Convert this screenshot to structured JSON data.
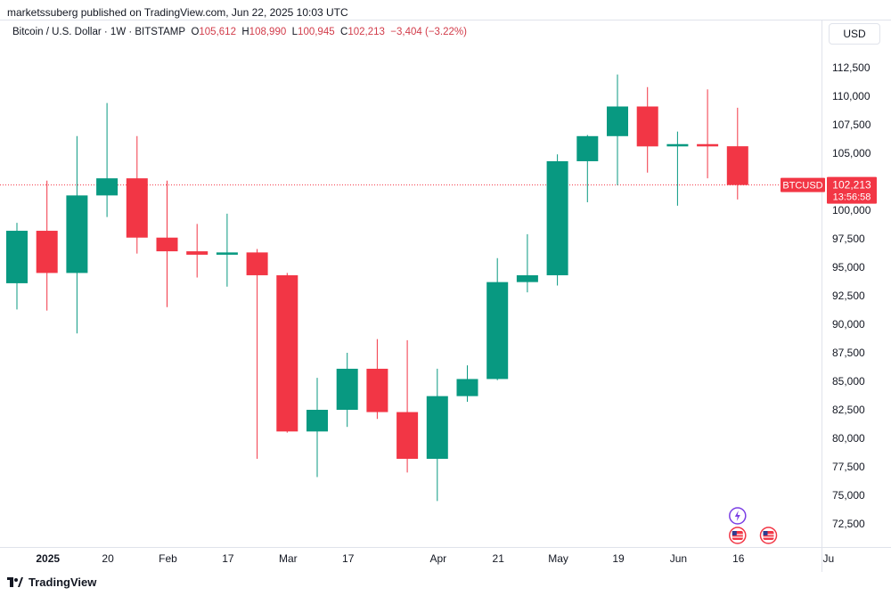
{
  "header": {
    "published": "marketssuberg published on TradingView.com, Jun 22, 2025 10:03 UTC",
    "symbol": "Bitcoin / U.S. Dollar · 1W · BITSTAMP",
    "o_label": "O",
    "o_value": "105,612",
    "h_label": "H",
    "h_value": "108,990",
    "l_label": "L",
    "l_value": "100,945",
    "c_label": "C",
    "c_value": "102,213",
    "change": "−3,404 (−3.22%)"
  },
  "currency_button": "USD",
  "footer": {
    "brand": "TradingView",
    "logo_icon": "tradingview-logo-icon"
  },
  "colors": {
    "up": "#089981",
    "down": "#f23645",
    "price_tag": "#f23645",
    "change_text": "#d23c4a"
  },
  "chart_data": {
    "type": "candlestick",
    "symbol": "BTCUSD",
    "interval": "1W",
    "ylim": [
      70500,
      114500
    ],
    "yticks": [
      72500,
      75000,
      77500,
      80000,
      82500,
      85000,
      87500,
      90000,
      92500,
      95000,
      97500,
      100000,
      102500,
      105000,
      107500,
      110000,
      112500
    ],
    "ytick_labels": [
      "72,500",
      "75,000",
      "77,500",
      "80,000",
      "82,500",
      "85,000",
      "87,500",
      "90,000",
      "92,500",
      "95,000",
      "97,500",
      "100,000",
      "102,500",
      "105,000",
      "107,500",
      "110,000",
      "112,500"
    ],
    "x_labels": [
      {
        "label": "2025",
        "index": 1,
        "bold": true
      },
      {
        "label": "20",
        "index": 3
      },
      {
        "label": "Feb",
        "index": 5
      },
      {
        "label": "17",
        "index": 7
      },
      {
        "label": "Mar",
        "index": 9
      },
      {
        "label": "17",
        "index": 11
      },
      {
        "label": "Apr",
        "index": 14
      },
      {
        "label": "21",
        "index": 16
      },
      {
        "label": "May",
        "index": 18
      },
      {
        "label": "19",
        "index": 20
      },
      {
        "label": "Jun",
        "index": 22
      },
      {
        "label": "16",
        "index": 24
      },
      {
        "label": "Ju",
        "index": 27
      }
    ],
    "candles": [
      {
        "o": 93600,
        "h": 98900,
        "l": 91300,
        "c": 98200
      },
      {
        "o": 98200,
        "h": 102600,
        "l": 91200,
        "c": 94500
      },
      {
        "o": 94500,
        "h": 106500,
        "l": 89200,
        "c": 101300
      },
      {
        "o": 101300,
        "h": 109400,
        "l": 99400,
        "c": 102800
      },
      {
        "o": 102800,
        "h": 106500,
        "l": 96200,
        "c": 97600
      },
      {
        "o": 97600,
        "h": 102600,
        "l": 91500,
        "c": 96400
      },
      {
        "o": 96400,
        "h": 98800,
        "l": 94100,
        "c": 96100
      },
      {
        "o": 96100,
        "h": 99700,
        "l": 93300,
        "c": 96300
      },
      {
        "o": 96300,
        "h": 96600,
        "l": 78200,
        "c": 94300
      },
      {
        "o": 94300,
        "h": 94500,
        "l": 80500,
        "c": 80600
      },
      {
        "o": 80600,
        "h": 85300,
        "l": 76600,
        "c": 82500
      },
      {
        "o": 82500,
        "h": 87500,
        "l": 81000,
        "c": 86100
      },
      {
        "o": 86100,
        "h": 88700,
        "l": 81700,
        "c": 82300
      },
      {
        "o": 82300,
        "h": 88600,
        "l": 77000,
        "c": 78200
      },
      {
        "o": 78200,
        "h": 86100,
        "l": 74500,
        "c": 83700
      },
      {
        "o": 83700,
        "h": 86400,
        "l": 83200,
        "c": 85200
      },
      {
        "o": 85200,
        "h": 95800,
        "l": 85100,
        "c": 93700
      },
      {
        "o": 93700,
        "h": 97900,
        "l": 92800,
        "c": 94300
      },
      {
        "o": 94300,
        "h": 104900,
        "l": 93400,
        "c": 104300
      },
      {
        "o": 104300,
        "h": 106600,
        "l": 100700,
        "c": 106500
      },
      {
        "o": 106500,
        "h": 111900,
        "l": 102200,
        "c": 109100
      },
      {
        "o": 109100,
        "h": 110800,
        "l": 103300,
        "c": 105600
      },
      {
        "o": 105600,
        "h": 106900,
        "l": 100400,
        "c": 105800
      },
      {
        "o": 105800,
        "h": 110600,
        "l": 102800,
        "c": 105600
      },
      {
        "o": 105612,
        "h": 108990,
        "l": 100945,
        "c": 102213
      }
    ],
    "last_price_label": "BTCUSD",
    "last_price": "102,213",
    "countdown": "13:56:58",
    "event_markers": [
      {
        "icon": "lightning-event-icon",
        "index": 24,
        "row": 0
      },
      {
        "icon": "us-flag-event-icon",
        "index": 24,
        "row": 1
      },
      {
        "icon": "us-flag-event-icon",
        "index": 25,
        "row": 1
      }
    ]
  }
}
